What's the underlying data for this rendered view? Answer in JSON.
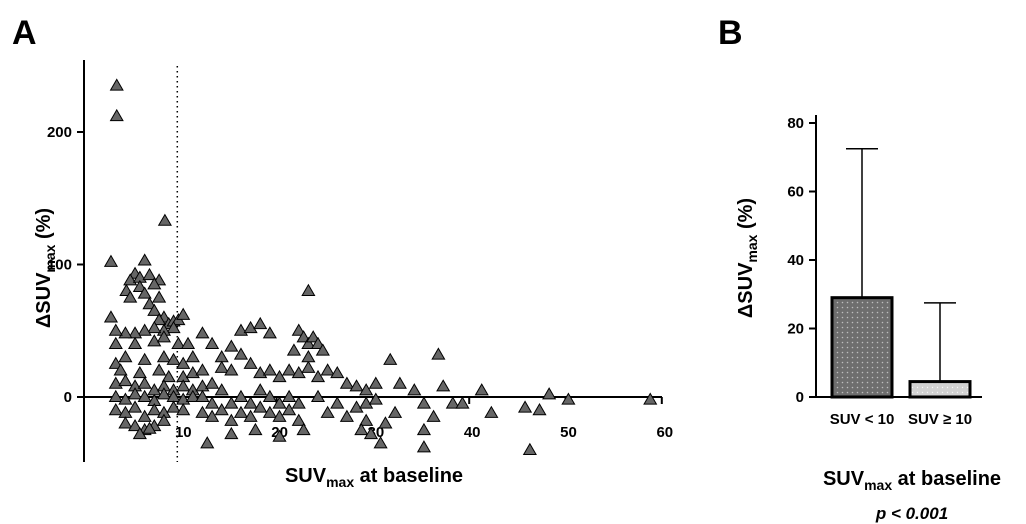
{
  "panel_a_letter": "A",
  "panel_b_letter": "B",
  "chart_data": [
    {
      "type": "scatter",
      "xlabel": "SUVmax at baseline",
      "xlabel_parts": {
        "main": "SUV",
        "sub": "max",
        "rest": " at baseline"
      },
      "ylabel": "ΔSUVmax (%)",
      "ylabel_parts": {
        "main": "ΔSUV",
        "sub": "max",
        "rest": " (%)"
      },
      "xlim": [
        0,
        60
      ],
      "ylim": [
        -50,
        250
      ],
      "x_ticks": [
        10,
        20,
        30,
        40,
        50,
        60
      ],
      "x_tick_labels": [
        "10",
        "20",
        "30",
        "40",
        "50",
        "60"
      ],
      "y_ticks": [
        0,
        100,
        200
      ],
      "y_tick_labels": [
        "0",
        "100",
        "200"
      ],
      "reference_line": {
        "x": 10,
        "style": "dotted"
      },
      "marker": "triangle",
      "marker_color": "#666666",
      "points": [
        [
          3.4,
          235
        ],
        [
          3.4,
          212
        ],
        [
          2.8,
          102
        ],
        [
          6.3,
          103
        ],
        [
          8.4,
          133
        ],
        [
          5.3,
          93
        ],
        [
          4.8,
          88
        ],
        [
          4.4,
          80
        ],
        [
          4.8,
          75
        ],
        [
          5.8,
          90
        ],
        [
          6.8,
          92
        ],
        [
          7.8,
          88
        ],
        [
          5.8,
          83
        ],
        [
          6.3,
          78
        ],
        [
          7.3,
          85
        ],
        [
          7.8,
          75
        ],
        [
          6.8,
          70
        ],
        [
          7.3,
          65
        ],
        [
          8.3,
          60
        ],
        [
          8.8,
          55
        ],
        [
          7.8,
          58
        ],
        [
          9.3,
          57
        ],
        [
          9.8,
          58
        ],
        [
          10.3,
          62
        ],
        [
          9.3,
          52
        ],
        [
          8.3,
          50
        ],
        [
          7.3,
          52
        ],
        [
          6.3,
          50
        ],
        [
          5.3,
          48
        ],
        [
          4.3,
          48
        ],
        [
          3.3,
          50
        ],
        [
          2.8,
          60
        ],
        [
          3.3,
          40
        ],
        [
          5.3,
          40
        ],
        [
          7.3,
          42
        ],
        [
          8.3,
          45
        ],
        [
          9.8,
          40
        ],
        [
          10.8,
          40
        ],
        [
          3.3,
          25
        ],
        [
          4.3,
          30
        ],
        [
          6.3,
          28
        ],
        [
          8.3,
          30
        ],
        [
          9.3,
          28
        ],
        [
          10.3,
          25
        ],
        [
          11.3,
          30
        ],
        [
          3.8,
          20
        ],
        [
          5.8,
          18
        ],
        [
          7.8,
          20
        ],
        [
          8.8,
          15
        ],
        [
          10.3,
          15
        ],
        [
          11.3,
          18
        ],
        [
          12.3,
          20
        ],
        [
          3.3,
          10
        ],
        [
          4.3,
          12
        ],
        [
          5.3,
          8
        ],
        [
          6.3,
          10
        ],
        [
          7.3,
          5
        ],
        [
          8.3,
          8
        ],
        [
          9.3,
          5
        ],
        [
          10.3,
          8
        ],
        [
          11.3,
          5
        ],
        [
          12.3,
          8
        ],
        [
          13.3,
          10
        ],
        [
          3.3,
          0
        ],
        [
          4.3,
          -2
        ],
        [
          5.3,
          2
        ],
        [
          6.3,
          0
        ],
        [
          7.3,
          -3
        ],
        [
          8.3,
          2
        ],
        [
          9.3,
          0
        ],
        [
          10.3,
          -2
        ],
        [
          11.3,
          0
        ],
        [
          3.3,
          -10
        ],
        [
          4.3,
          -12
        ],
        [
          5.3,
          -8
        ],
        [
          6.3,
          -15
        ],
        [
          7.3,
          -10
        ],
        [
          8.3,
          -12
        ],
        [
          9.3,
          -8
        ],
        [
          10.3,
          -10
        ],
        [
          4.3,
          -20
        ],
        [
          5.3,
          -22
        ],
        [
          6.3,
          -25
        ],
        [
          7.3,
          -22
        ],
        [
          8.3,
          -18
        ],
        [
          5.8,
          -28
        ],
        [
          6.8,
          -24
        ],
        [
          12.3,
          48
        ],
        [
          13.3,
          40
        ],
        [
          14.3,
          30
        ],
        [
          15.3,
          38
        ],
        [
          16.3,
          50
        ],
        [
          17.3,
          52
        ],
        [
          18.3,
          55
        ],
        [
          19.3,
          48
        ],
        [
          16.3,
          32
        ],
        [
          14.3,
          22
        ],
        [
          15.3,
          20
        ],
        [
          17.3,
          25
        ],
        [
          18.3,
          18
        ],
        [
          19.3,
          20
        ],
        [
          20.3,
          15
        ],
        [
          21.3,
          20
        ],
        [
          22.3,
          18
        ],
        [
          23.3,
          22
        ],
        [
          12.3,
          0
        ],
        [
          13.3,
          -5
        ],
        [
          14.3,
          5
        ],
        [
          15.3,
          -5
        ],
        [
          16.3,
          0
        ],
        [
          17.3,
          -5
        ],
        [
          18.3,
          5
        ],
        [
          19.3,
          0
        ],
        [
          20.3,
          -5
        ],
        [
          21.3,
          0
        ],
        [
          22.3,
          -5
        ],
        [
          12.3,
          -12
        ],
        [
          13.3,
          -15
        ],
        [
          14.3,
          -10
        ],
        [
          15.3,
          -18
        ],
        [
          16.3,
          -12
        ],
        [
          17.3,
          -15
        ],
        [
          18.3,
          -8
        ],
        [
          19.3,
          -12
        ],
        [
          20.3,
          -15
        ],
        [
          21.3,
          -10
        ],
        [
          22.3,
          -18
        ],
        [
          12.8,
          -35
        ],
        [
          15.3,
          -28
        ],
        [
          17.8,
          -25
        ],
        [
          22.8,
          -25
        ],
        [
          20.3,
          -30
        ],
        [
          22.3,
          50
        ],
        [
          22.8,
          45
        ],
        [
          23.3,
          40
        ],
        [
          21.8,
          35
        ],
        [
          23.8,
          45
        ],
        [
          24.3,
          40
        ],
        [
          24.8,
          35
        ],
        [
          23.3,
          80
        ],
        [
          23.3,
          30
        ],
        [
          25.3,
          20
        ],
        [
          26.3,
          18
        ],
        [
          24.3,
          15
        ],
        [
          27.3,
          10
        ],
        [
          28.3,
          8
        ],
        [
          29.3,
          5
        ],
        [
          30.3,
          10
        ],
        [
          24.3,
          0
        ],
        [
          26.3,
          -5
        ],
        [
          28.3,
          -8
        ],
        [
          29.3,
          -5
        ],
        [
          30.3,
          -2
        ],
        [
          25.3,
          -12
        ],
        [
          27.3,
          -15
        ],
        [
          29.3,
          -18
        ],
        [
          31.3,
          -20
        ],
        [
          28.8,
          -25
        ],
        [
          29.8,
          -28
        ],
        [
          32.3,
          -12
        ],
        [
          30.8,
          -35
        ],
        [
          31.8,
          28
        ],
        [
          32.8,
          10
        ],
        [
          34.3,
          5
        ],
        [
          35.3,
          -5
        ],
        [
          36.3,
          -15
        ],
        [
          36.8,
          32
        ],
        [
          37.3,
          8
        ],
        [
          38.3,
          -5
        ],
        [
          39.3,
          -5
        ],
        [
          35.3,
          -25
        ],
        [
          35.3,
          -38
        ],
        [
          41.3,
          5
        ],
        [
          42.3,
          -12
        ],
        [
          45.8,
          -8
        ],
        [
          46.3,
          -40
        ],
        [
          47.3,
          -10
        ],
        [
          48.3,
          2
        ],
        [
          50.3,
          -2
        ],
        [
          58.8,
          -2
        ]
      ]
    },
    {
      "type": "bar",
      "categories": [
        "SUV < 10",
        "SUV ≥ 10"
      ],
      "values": [
        29,
        4.5
      ],
      "error_upper": [
        72.5,
        27.5
      ],
      "ylabel": "ΔSUVmax (%)",
      "ylabel_parts": {
        "main": "ΔSUV",
        "sub": "max",
        "rest": " (%)"
      },
      "xlabel": "SUVmax at baseline",
      "xlabel_parts": {
        "main": "SUV",
        "sub": "max",
        "rest": " at baseline"
      },
      "ylim": [
        0,
        80
      ],
      "y_ticks": [
        0,
        20,
        40,
        60,
        80
      ],
      "y_tick_labels": [
        "0",
        "20",
        "40",
        "60",
        "80"
      ],
      "bar_colors": [
        "#6e6e6e",
        "#cfcfcf"
      ],
      "annotation": "p < 0.001"
    }
  ]
}
